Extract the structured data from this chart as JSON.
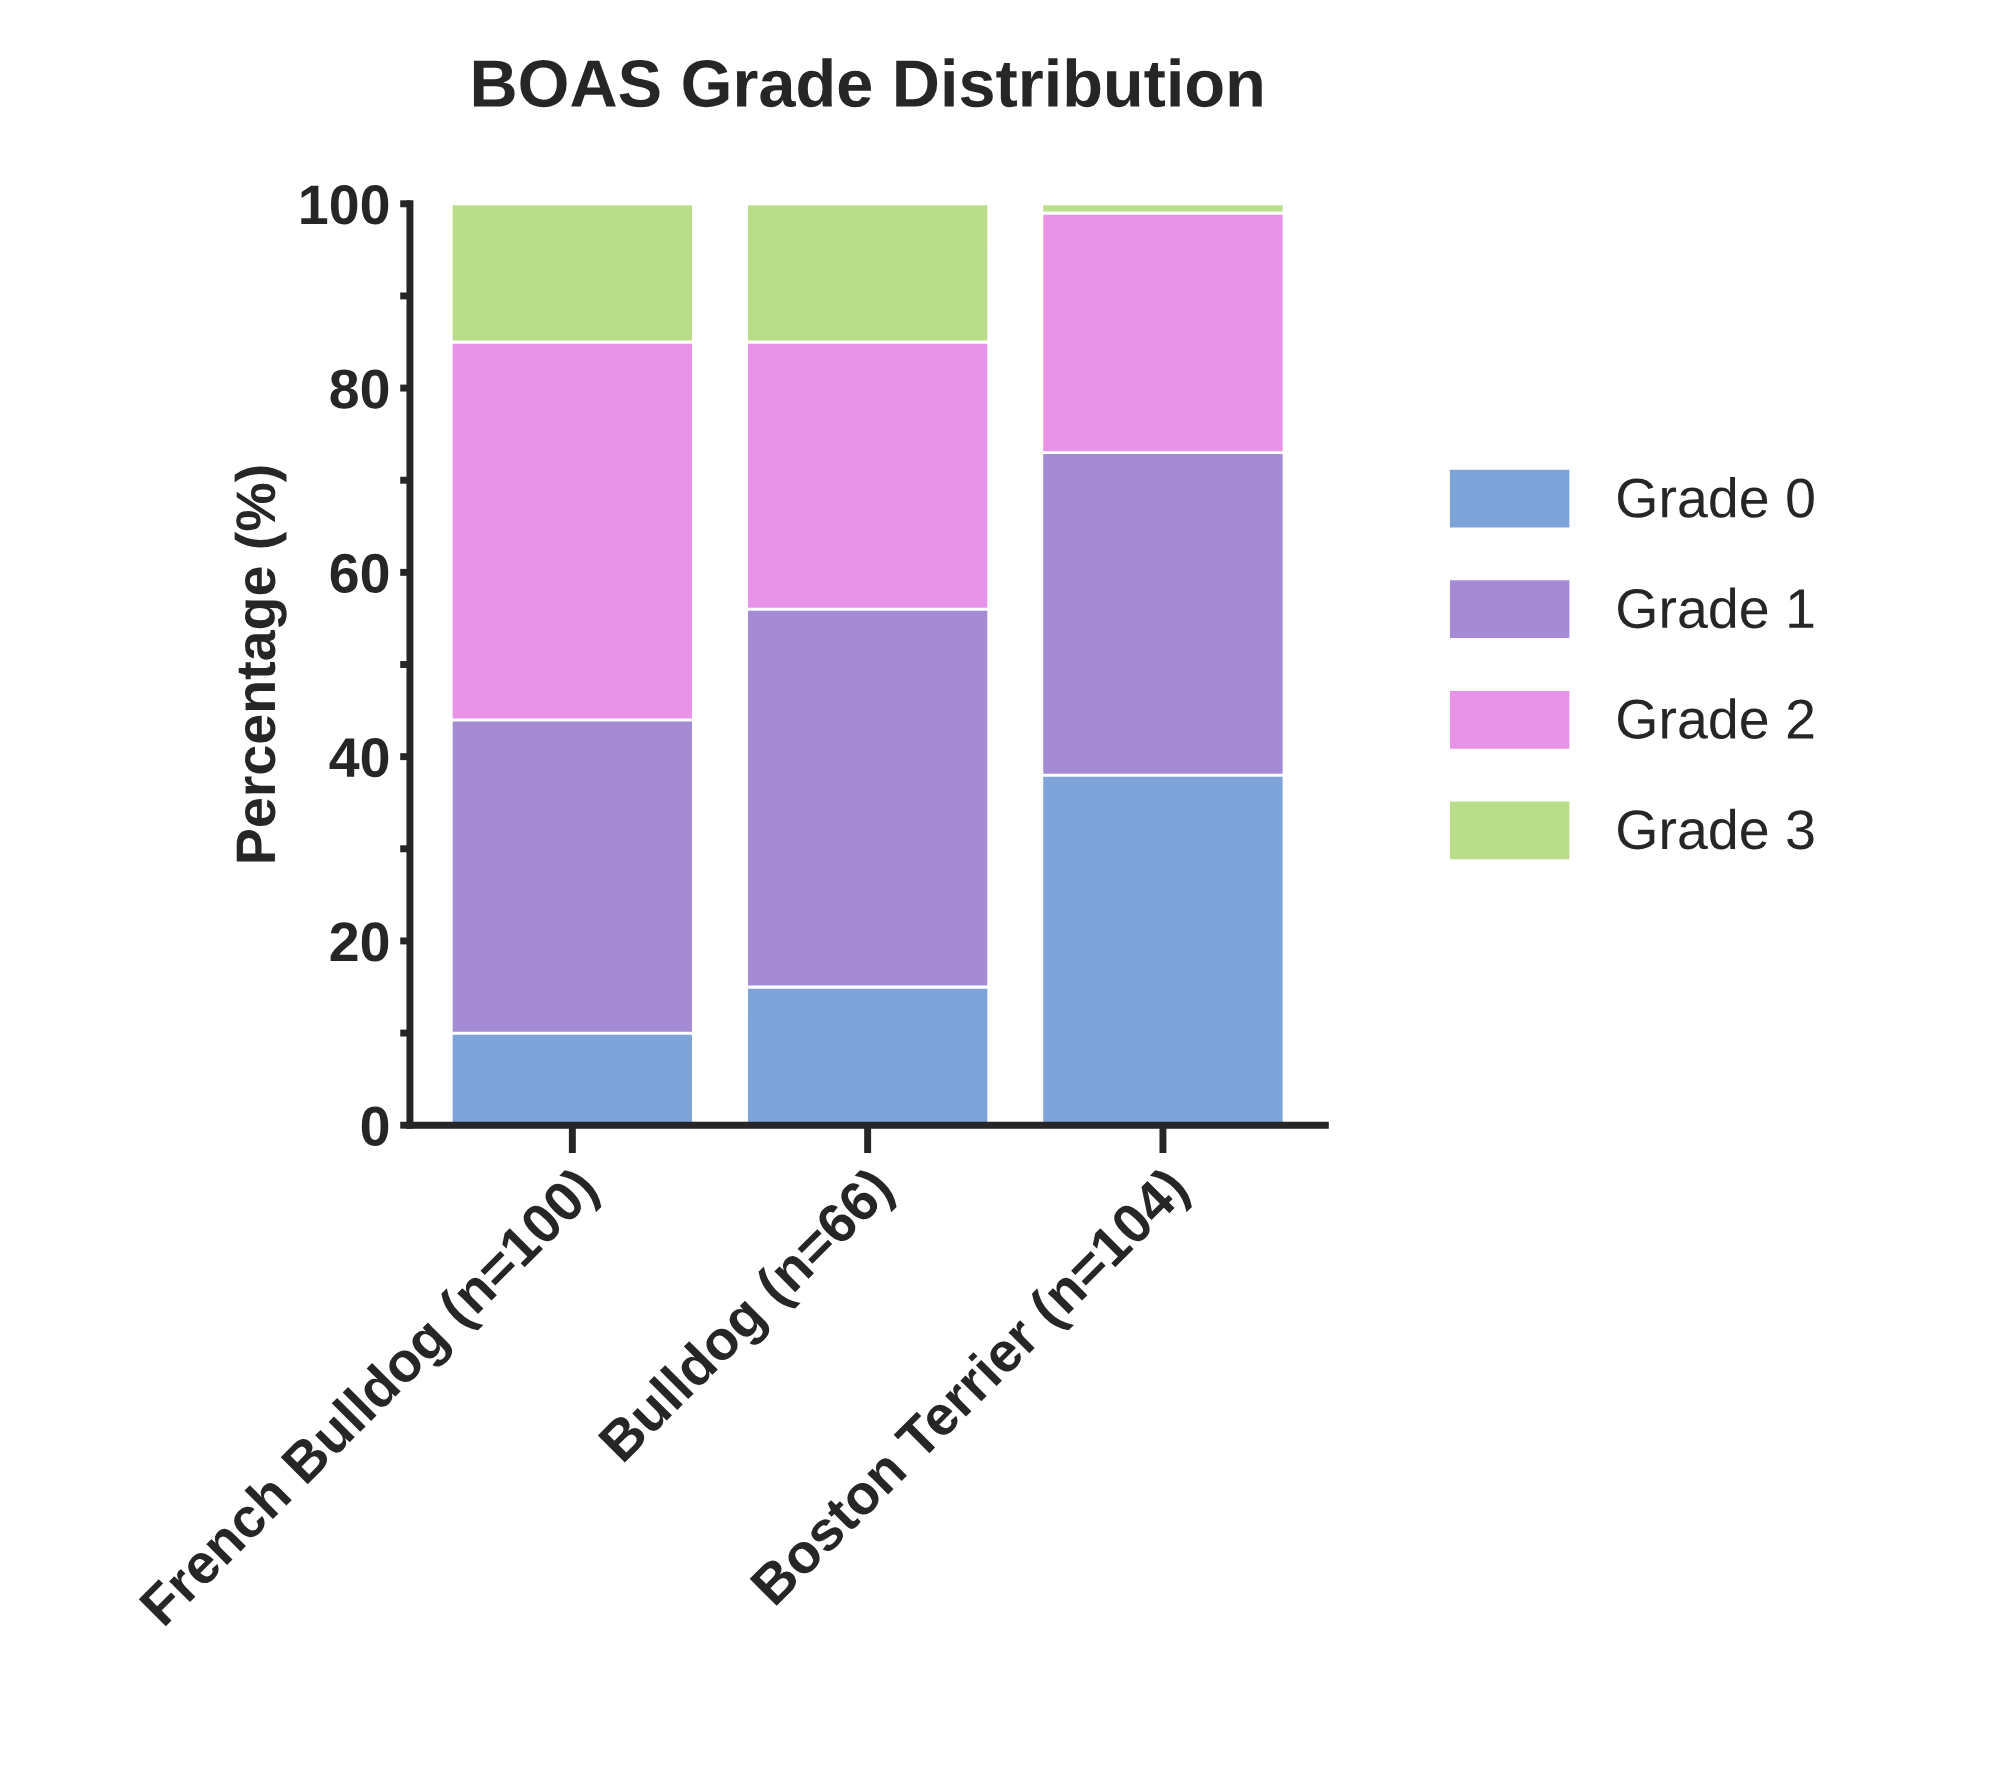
{
  "chart_data": {
    "type": "bar",
    "title": "BOAS Grade Distribution",
    "ylabel": "Percentage (%)",
    "stacked": true,
    "categories": [
      "French Bulldog (n=100)",
      "Bulldog (n=66)",
      "Boston Terrier (n=104)"
    ],
    "series": [
      {
        "name": "Grade 0",
        "color": "#7ea3d8",
        "values": [
          10,
          15,
          38
        ]
      },
      {
        "name": "Grade 1",
        "color": "#a58bd4",
        "values": [
          34,
          41,
          35
        ]
      },
      {
        "name": "Grade 2",
        "color": "#e892e8",
        "values": [
          41,
          29,
          26
        ]
      },
      {
        "name": "Grade 3",
        "color": "#b9dd88",
        "values": [
          15,
          15,
          1
        ]
      }
    ],
    "ylim": [
      0,
      100
    ],
    "yticks": [
      0,
      {
        "value": 10,
        "label": null
      },
      20,
      {
        "value": 30,
        "label": null
      },
      40,
      {
        "value": 50,
        "label": null
      },
      60,
      {
        "value": 70,
        "label": null
      },
      80,
      {
        "value": 90,
        "label": null
      },
      100
    ],
    "grid": false,
    "legend": "right"
  }
}
